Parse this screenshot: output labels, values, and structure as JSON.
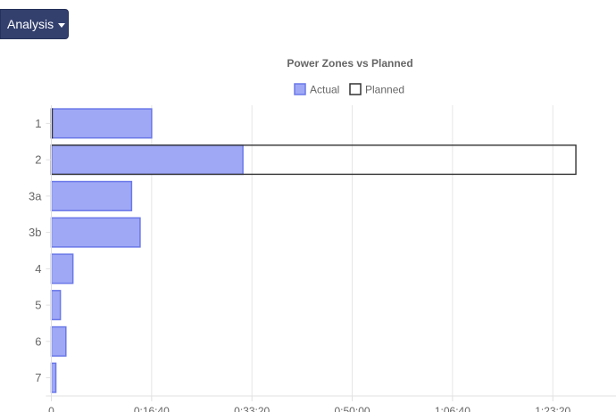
{
  "toolbar": {
    "analysis_label": "Analysis",
    "analysis_icon": "caret-down-icon"
  },
  "chart_data": {
    "type": "bar",
    "orientation": "horizontal",
    "title": "Power Zones vs Planned",
    "legend": [
      "Actual",
      "Planned"
    ],
    "legend_position": "top",
    "categories": [
      "1",
      "2",
      "3a",
      "3b",
      "4",
      "5",
      "6",
      "7"
    ],
    "x_unit": "seconds (h:mm:ss)",
    "x_ticks": [
      0,
      1000,
      2000,
      3000,
      4000,
      5000
    ],
    "x_tick_labels": [
      "0",
      "0:16:40",
      "0:33:20",
      "0:50:00",
      "1:06:40",
      "1:23:20"
    ],
    "xlim": [
      0,
      5630
    ],
    "grid": true,
    "series": [
      {
        "name": "Actual",
        "color": "#9fa8f5",
        "border_color": "#6a78e8",
        "values": [
          1000,
          1910,
          800,
          885,
          215,
          90,
          145,
          45
        ]
      },
      {
        "name": "Planned",
        "color": "transparent",
        "border_color": "#333333",
        "values": [
          5,
          5230,
          0,
          0,
          0,
          0,
          0,
          0
        ]
      }
    ]
  }
}
